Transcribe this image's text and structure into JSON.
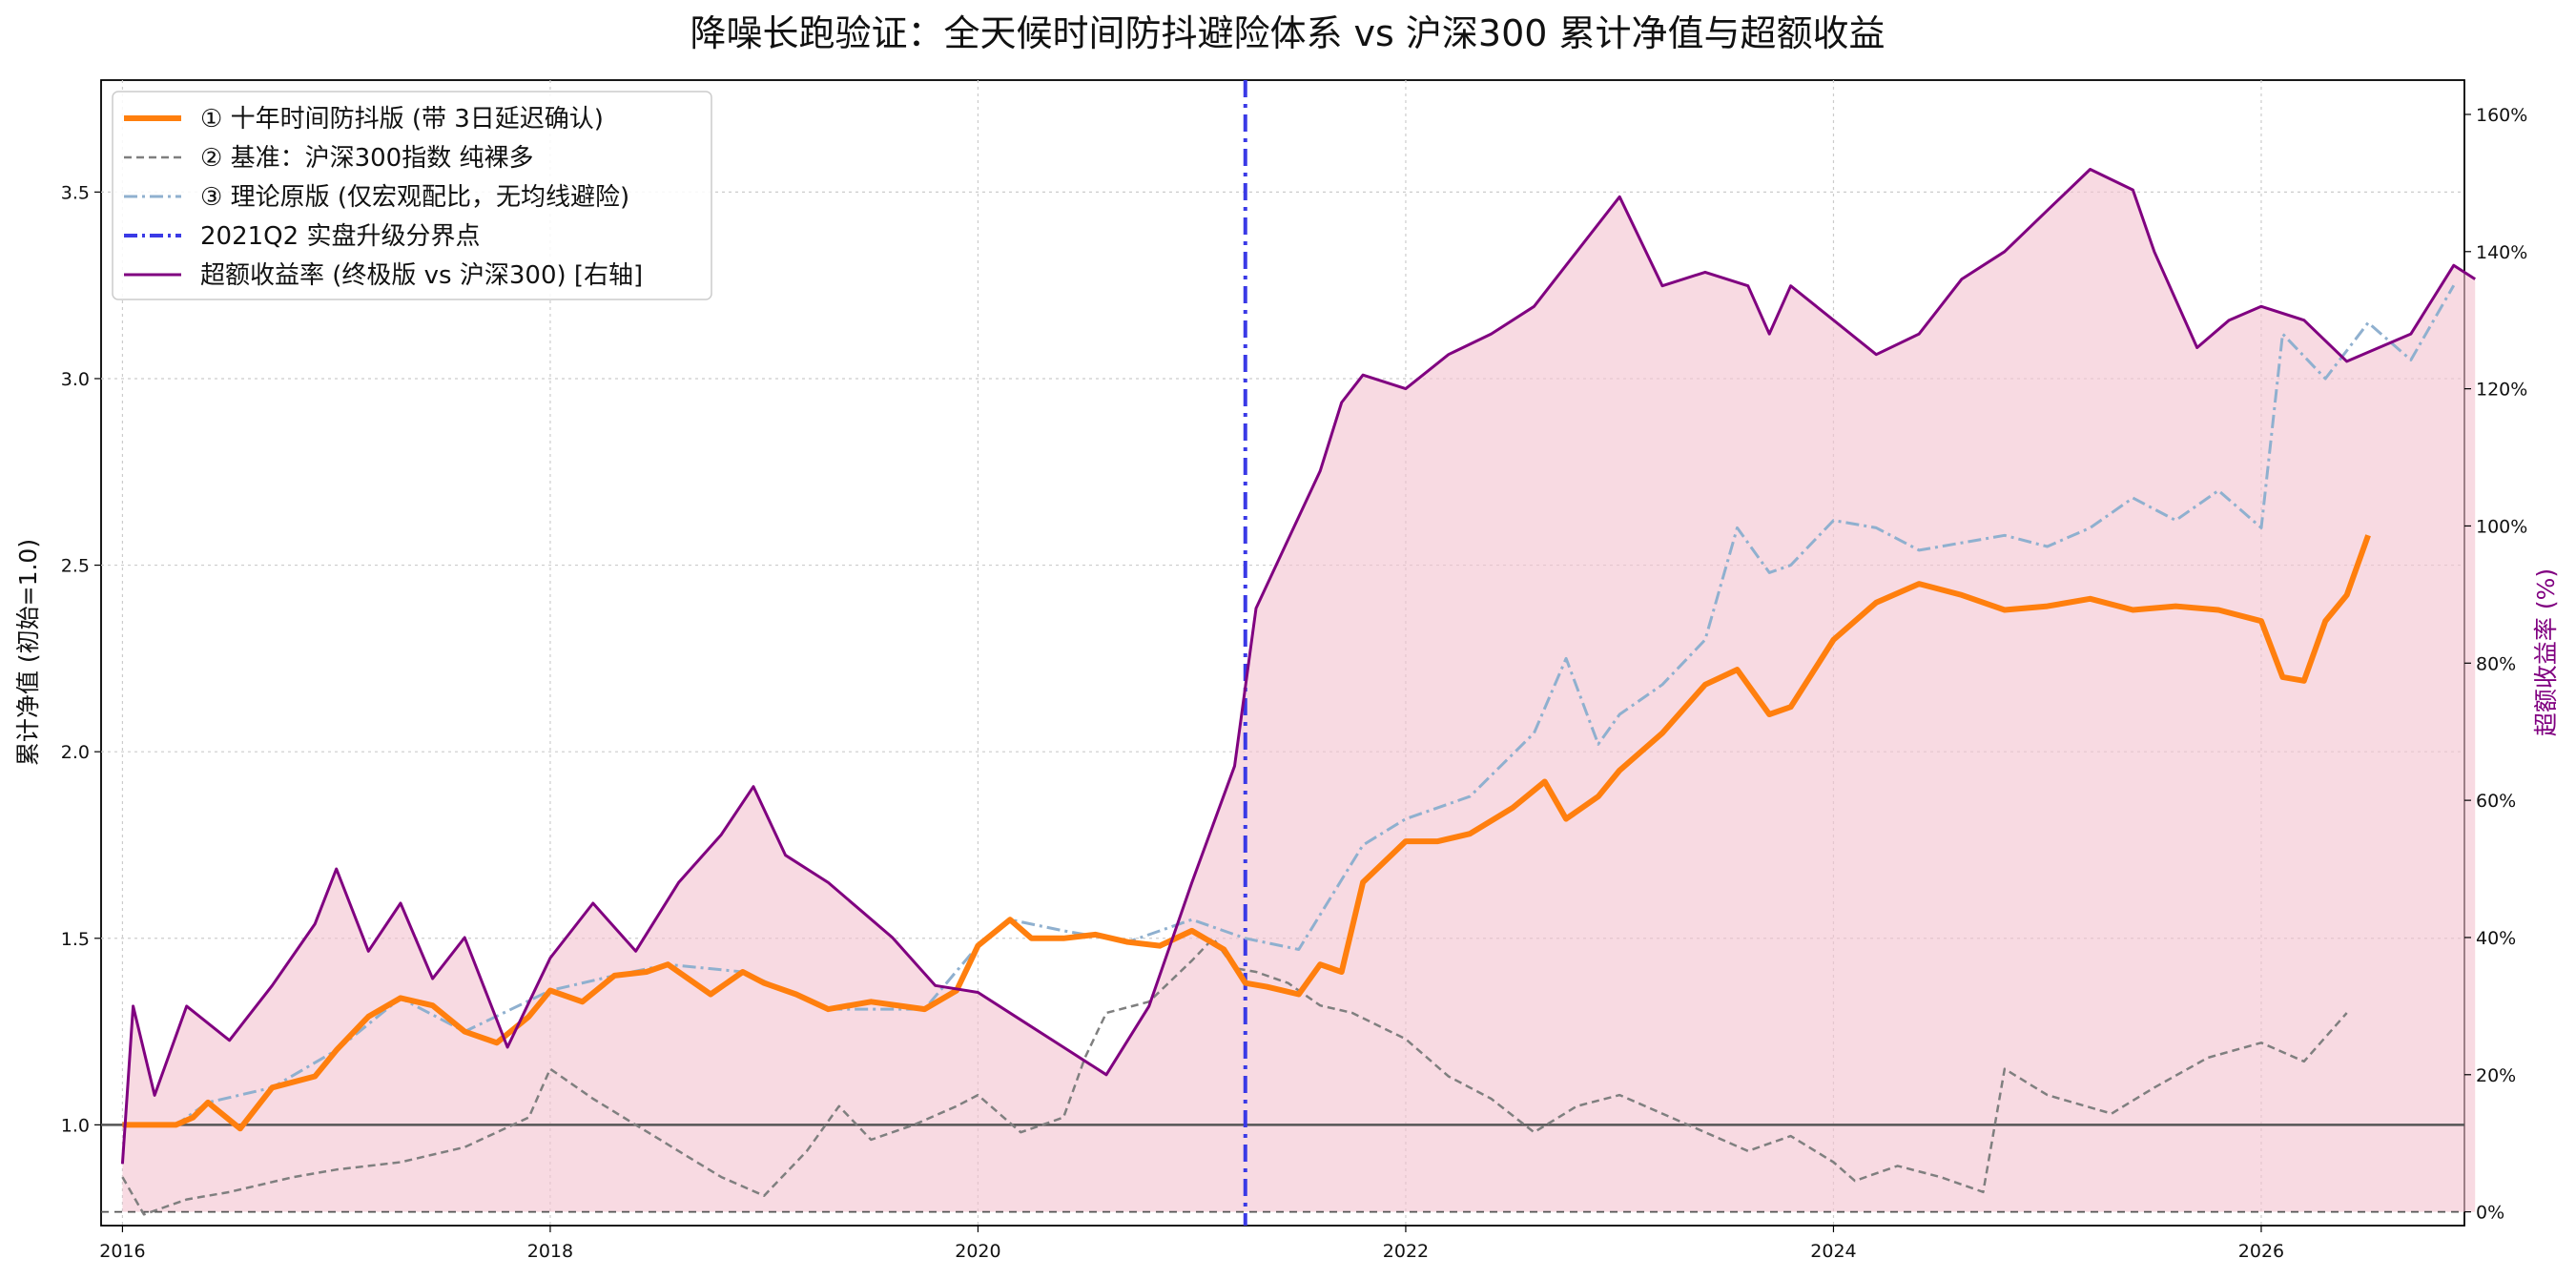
{
  "chart_data": {
    "type": "line",
    "title": "降噪长跑验证：全天候时间防抖避险体系 vs 沪深300 累计净值与超额收益",
    "ylabel": "累计净值 (初始=1.0)",
    "y2label": "超额收益率 (%)",
    "xlim": [
      2015.9,
      2026.95
    ],
    "ylim": [
      0.73,
      3.8
    ],
    "y2lim": [
      -2,
      165
    ],
    "xticks": [
      2016,
      2018,
      2020,
      2022,
      2024,
      2026
    ],
    "xtick_labels": [
      "2016",
      "2018",
      "2020",
      "2022",
      "2024",
      "2026"
    ],
    "yticks": [
      1.0,
      1.5,
      2.0,
      2.5,
      3.0,
      3.5
    ],
    "ytick_labels": [
      "1.0",
      "1.5",
      "2.0",
      "2.5",
      "3.0",
      "3.5"
    ],
    "y2ticks": [
      0,
      20,
      40,
      60,
      80,
      100,
      120,
      140,
      160
    ],
    "y2tick_labels": [
      "0%",
      "20%",
      "40%",
      "60%",
      "80%",
      "100%",
      "120%",
      "140%",
      "160%"
    ],
    "grid": true,
    "legend_position": "top-left",
    "reference_lines": {
      "hline_left_axis": 1.0,
      "hline_right_axis": 0,
      "vline_x": 2021.25,
      "vline_name": "2021Q2 实盘升级分界点"
    },
    "series": [
      {
        "name": "① 十年时间防抖版 (带 3日延迟确认)",
        "axis": "left",
        "color": "#ff7f0e",
        "style": "solid",
        "points": [
          [
            2016.0,
            1.0
          ],
          [
            2016.25,
            1.0
          ],
          [
            2016.33,
            1.02
          ],
          [
            2016.4,
            1.06
          ],
          [
            2016.55,
            0.99
          ],
          [
            2016.7,
            1.1
          ],
          [
            2016.9,
            1.13
          ],
          [
            2017.0,
            1.2
          ],
          [
            2017.15,
            1.29
          ],
          [
            2017.3,
            1.34
          ],
          [
            2017.45,
            1.32
          ],
          [
            2017.6,
            1.25
          ],
          [
            2017.75,
            1.22
          ],
          [
            2017.9,
            1.29
          ],
          [
            2018.0,
            1.36
          ],
          [
            2018.15,
            1.33
          ],
          [
            2018.3,
            1.4
          ],
          [
            2018.45,
            1.41
          ],
          [
            2018.55,
            1.43
          ],
          [
            2018.75,
            1.35
          ],
          [
            2018.9,
            1.41
          ],
          [
            2019.0,
            1.38
          ],
          [
            2019.15,
            1.35
          ],
          [
            2019.3,
            1.31
          ],
          [
            2019.5,
            1.33
          ],
          [
            2019.75,
            1.31
          ],
          [
            2019.9,
            1.36
          ],
          [
            2020.0,
            1.48
          ],
          [
            2020.15,
            1.55
          ],
          [
            2020.25,
            1.5
          ],
          [
            2020.4,
            1.5
          ],
          [
            2020.55,
            1.51
          ],
          [
            2020.7,
            1.49
          ],
          [
            2020.85,
            1.48
          ],
          [
            2021.0,
            1.52
          ],
          [
            2021.15,
            1.47
          ],
          [
            2021.25,
            1.38
          ],
          [
            2021.35,
            1.37
          ],
          [
            2021.5,
            1.35
          ],
          [
            2021.6,
            1.43
          ],
          [
            2021.7,
            1.41
          ],
          [
            2021.8,
            1.65
          ],
          [
            2022.0,
            1.76
          ],
          [
            2022.15,
            1.76
          ],
          [
            2022.3,
            1.78
          ],
          [
            2022.5,
            1.85
          ],
          [
            2022.65,
            1.92
          ],
          [
            2022.75,
            1.82
          ],
          [
            2022.9,
            1.88
          ],
          [
            2023.0,
            1.95
          ],
          [
            2023.2,
            2.05
          ],
          [
            2023.4,
            2.18
          ],
          [
            2023.55,
            2.22
          ],
          [
            2023.7,
            2.1
          ],
          [
            2023.8,
            2.12
          ],
          [
            2024.0,
            2.3
          ],
          [
            2024.2,
            2.4
          ],
          [
            2024.4,
            2.45
          ],
          [
            2024.6,
            2.42
          ],
          [
            2024.8,
            2.38
          ],
          [
            2025.0,
            2.39
          ],
          [
            2025.2,
            2.41
          ],
          [
            2025.4,
            2.38
          ],
          [
            2025.6,
            2.39
          ],
          [
            2025.8,
            2.38
          ],
          [
            2026.0,
            2.35
          ],
          [
            2026.1,
            2.2
          ],
          [
            2026.2,
            2.19
          ],
          [
            2026.3,
            2.35
          ],
          [
            2026.4,
            2.42
          ],
          [
            2026.5,
            2.58
          ]
        ]
      },
      {
        "name": "② 基准：沪深300指数 纯裸多",
        "axis": "left",
        "color": "#7f7f7f",
        "style": "dashed",
        "points": [
          [
            2016.0,
            0.86
          ],
          [
            2016.1,
            0.76
          ],
          [
            2016.3,
            0.8
          ],
          [
            2016.5,
            0.82
          ],
          [
            2016.8,
            0.86
          ],
          [
            2017.0,
            0.88
          ],
          [
            2017.3,
            0.9
          ],
          [
            2017.6,
            0.94
          ],
          [
            2017.9,
            1.02
          ],
          [
            2018.0,
            1.15
          ],
          [
            2018.2,
            1.07
          ],
          [
            2018.4,
            1.0
          ],
          [
            2018.6,
            0.93
          ],
          [
            2018.8,
            0.86
          ],
          [
            2019.0,
            0.81
          ],
          [
            2019.2,
            0.93
          ],
          [
            2019.35,
            1.05
          ],
          [
            2019.5,
            0.96
          ],
          [
            2019.7,
            1.0
          ],
          [
            2019.9,
            1.05
          ],
          [
            2020.0,
            1.08
          ],
          [
            2020.2,
            0.98
          ],
          [
            2020.4,
            1.02
          ],
          [
            2020.5,
            1.18
          ],
          [
            2020.6,
            1.3
          ],
          [
            2020.8,
            1.33
          ],
          [
            2021.0,
            1.44
          ],
          [
            2021.1,
            1.5
          ],
          [
            2021.2,
            1.42
          ],
          [
            2021.3,
            1.41
          ],
          [
            2021.45,
            1.38
          ],
          [
            2021.6,
            1.32
          ],
          [
            2021.75,
            1.3
          ],
          [
            2022.0,
            1.23
          ],
          [
            2022.2,
            1.13
          ],
          [
            2022.4,
            1.07
          ],
          [
            2022.6,
            0.98
          ],
          [
            2022.8,
            1.05
          ],
          [
            2023.0,
            1.08
          ],
          [
            2023.2,
            1.03
          ],
          [
            2023.4,
            0.98
          ],
          [
            2023.6,
            0.93
          ],
          [
            2023.8,
            0.97
          ],
          [
            2024.0,
            0.9
          ],
          [
            2024.1,
            0.85
          ],
          [
            2024.3,
            0.89
          ],
          [
            2024.5,
            0.86
          ],
          [
            2024.7,
            0.82
          ],
          [
            2024.8,
            1.15
          ],
          [
            2025.0,
            1.08
          ],
          [
            2025.3,
            1.03
          ],
          [
            2025.5,
            1.1
          ],
          [
            2025.75,
            1.18
          ],
          [
            2026.0,
            1.22
          ],
          [
            2026.2,
            1.17
          ],
          [
            2026.4,
            1.3
          ]
        ]
      },
      {
        "name": "③ 理论原版 (仅宏观配比，无均线避险)",
        "axis": "left",
        "color": "#8fb0cf",
        "style": "dashdot",
        "points": [
          [
            2016.0,
            1.0
          ],
          [
            2016.25,
            1.0
          ],
          [
            2016.4,
            1.06
          ],
          [
            2016.7,
            1.1
          ],
          [
            2017.0,
            1.2
          ],
          [
            2017.3,
            1.34
          ],
          [
            2017.6,
            1.25
          ],
          [
            2018.0,
            1.36
          ],
          [
            2018.3,
            1.4
          ],
          [
            2018.55,
            1.43
          ],
          [
            2018.9,
            1.41
          ],
          [
            2019.3,
            1.31
          ],
          [
            2019.75,
            1.31
          ],
          [
            2020.0,
            1.48
          ],
          [
            2020.15,
            1.55
          ],
          [
            2020.4,
            1.52
          ],
          [
            2020.7,
            1.49
          ],
          [
            2021.0,
            1.55
          ],
          [
            2021.25,
            1.5
          ],
          [
            2021.5,
            1.47
          ],
          [
            2021.8,
            1.75
          ],
          [
            2022.0,
            1.82
          ],
          [
            2022.3,
            1.88
          ],
          [
            2022.6,
            2.05
          ],
          [
            2022.75,
            2.25
          ],
          [
            2022.9,
            2.02
          ],
          [
            2023.0,
            2.1
          ],
          [
            2023.2,
            2.18
          ],
          [
            2023.4,
            2.3
          ],
          [
            2023.55,
            2.6
          ],
          [
            2023.7,
            2.48
          ],
          [
            2023.8,
            2.5
          ],
          [
            2024.0,
            2.62
          ],
          [
            2024.2,
            2.6
          ],
          [
            2024.4,
            2.54
          ],
          [
            2024.6,
            2.56
          ],
          [
            2024.8,
            2.58
          ],
          [
            2025.0,
            2.55
          ],
          [
            2025.2,
            2.6
          ],
          [
            2025.4,
            2.68
          ],
          [
            2025.6,
            2.62
          ],
          [
            2025.8,
            2.7
          ],
          [
            2026.0,
            2.6
          ],
          [
            2026.1,
            3.12
          ],
          [
            2026.3,
            3.0
          ],
          [
            2026.5,
            3.15
          ],
          [
            2026.7,
            3.05
          ],
          [
            2026.9,
            3.25
          ]
        ]
      },
      {
        "name": "超额收益率 (终极版 vs 沪深300) [右轴]",
        "axis": "right",
        "color": "#800080",
        "style": "solid",
        "fill": "#f4c2cf",
        "points": [
          [
            2016.0,
            7
          ],
          [
            2016.05,
            30
          ],
          [
            2016.15,
            17
          ],
          [
            2016.3,
            30
          ],
          [
            2016.5,
            25
          ],
          [
            2016.7,
            33
          ],
          [
            2016.9,
            42
          ],
          [
            2017.0,
            50
          ],
          [
            2017.15,
            38
          ],
          [
            2017.3,
            45
          ],
          [
            2017.45,
            34
          ],
          [
            2017.6,
            40
          ],
          [
            2017.8,
            24
          ],
          [
            2018.0,
            37
          ],
          [
            2018.2,
            45
          ],
          [
            2018.4,
            38
          ],
          [
            2018.6,
            48
          ],
          [
            2018.8,
            55
          ],
          [
            2018.95,
            62
          ],
          [
            2019.1,
            52
          ],
          [
            2019.3,
            48
          ],
          [
            2019.45,
            44
          ],
          [
            2019.6,
            40
          ],
          [
            2019.8,
            33
          ],
          [
            2020.0,
            32
          ],
          [
            2020.2,
            28
          ],
          [
            2020.4,
            24
          ],
          [
            2020.6,
            20
          ],
          [
            2020.8,
            30
          ],
          [
            2021.0,
            48
          ],
          [
            2021.2,
            65
          ],
          [
            2021.3,
            88
          ],
          [
            2021.45,
            98
          ],
          [
            2021.6,
            108
          ],
          [
            2021.7,
            118
          ],
          [
            2021.8,
            122
          ],
          [
            2022.0,
            120
          ],
          [
            2022.2,
            125
          ],
          [
            2022.4,
            128
          ],
          [
            2022.6,
            132
          ],
          [
            2022.8,
            140
          ],
          [
            2023.0,
            148
          ],
          [
            2023.2,
            135
          ],
          [
            2023.4,
            137
          ],
          [
            2023.6,
            135
          ],
          [
            2023.7,
            128
          ],
          [
            2023.8,
            135
          ],
          [
            2024.0,
            130
          ],
          [
            2024.2,
            125
          ],
          [
            2024.4,
            128
          ],
          [
            2024.6,
            136
          ],
          [
            2024.8,
            140
          ],
          [
            2025.0,
            146
          ],
          [
            2025.2,
            152
          ],
          [
            2025.4,
            149
          ],
          [
            2025.5,
            140
          ],
          [
            2025.7,
            126
          ],
          [
            2025.85,
            130
          ],
          [
            2026.0,
            132
          ],
          [
            2026.2,
            130
          ],
          [
            2026.4,
            124
          ],
          [
            2026.55,
            126
          ],
          [
            2026.7,
            128
          ],
          [
            2026.9,
            138
          ],
          [
            2027.0,
            136
          ]
        ]
      }
    ]
  }
}
